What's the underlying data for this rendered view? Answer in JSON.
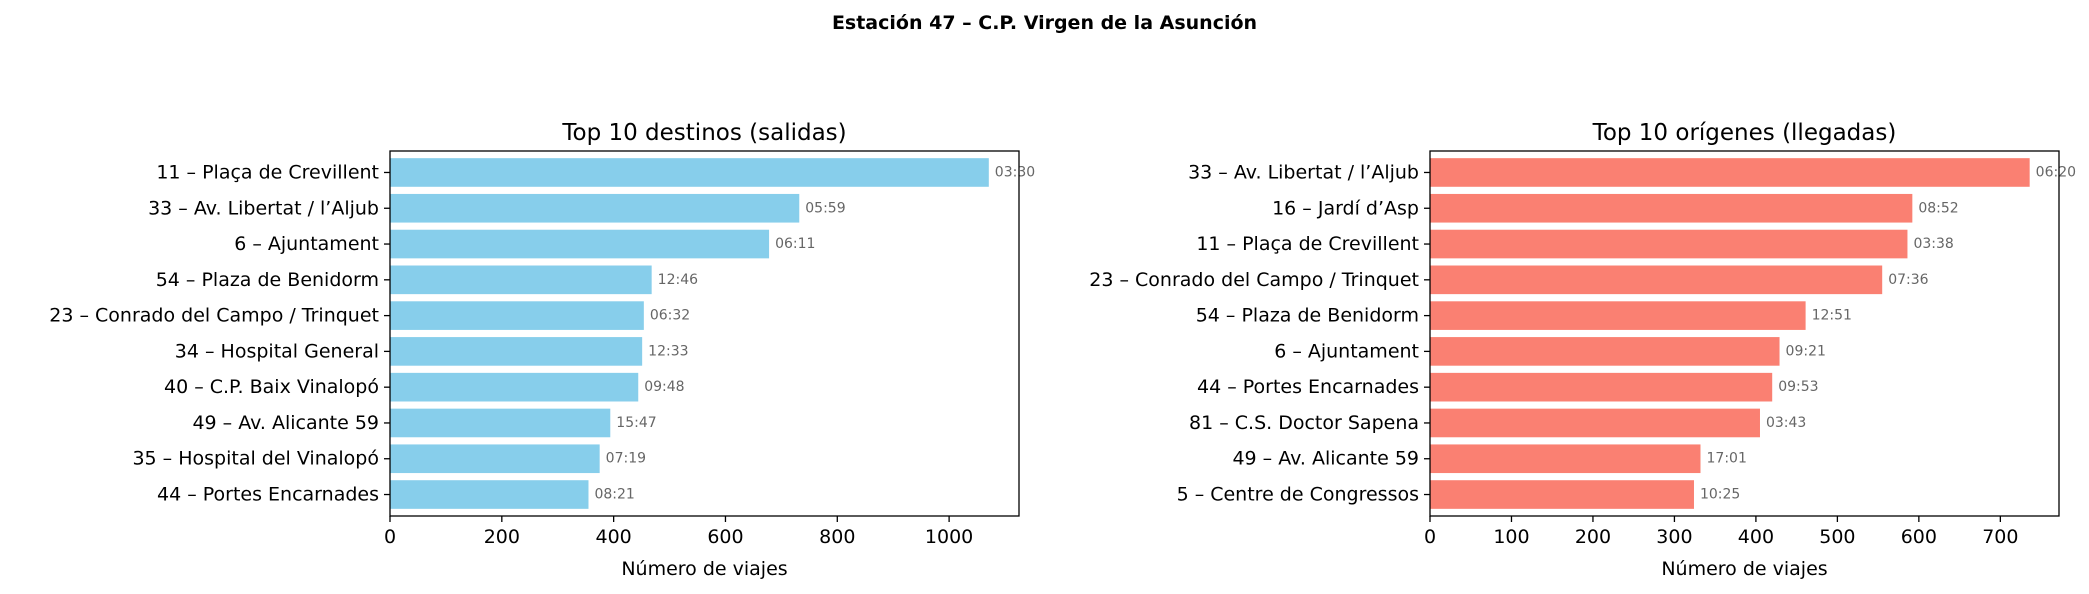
{
  "figure_title": "Estación 47 – C.P. Virgen de la Asunción",
  "chart_data": [
    {
      "type": "bar",
      "orientation": "horizontal",
      "title": "Top 10 destinos (salidas)",
      "xlabel": "Número de viajes",
      "ylabel": "",
      "xlim": [
        0,
        1125
      ],
      "xticks": [
        0,
        200,
        400,
        600,
        800,
        1000
      ],
      "grid": false,
      "bar_color": "#87ceeb",
      "categories": [
        "11 – Plaça de Crevillent",
        "33 – Av. Libertat / l’Aljub",
        "6 – Ajuntament",
        "54 – Plaza de Benidorm",
        "23 – Conrado del Campo / Trinquet",
        "34 – Hospital General",
        "40 – C.P. Baix Vinalopó",
        "49 – Av. Alicante 59",
        "35 – Hospital del Vinalopó",
        "44 – Portes Encarnades"
      ],
      "values": [
        1071,
        732,
        678,
        468,
        454,
        451,
        444,
        394,
        375,
        355
      ],
      "bar_labels": [
        "03:30",
        "05:59",
        "06:11",
        "12:46",
        "06:32",
        "12:33",
        "09:48",
        "15:47",
        "07:19",
        "08:21"
      ]
    },
    {
      "type": "bar",
      "orientation": "horizontal",
      "title": "Top 10 orígenes (llegadas)",
      "xlabel": "Número de viajes",
      "ylabel": "",
      "xlim": [
        0,
        772
      ],
      "xticks": [
        0,
        100,
        200,
        300,
        400,
        500,
        600,
        700
      ],
      "grid": false,
      "bar_color": "#fa8072",
      "categories": [
        "33 – Av. Libertat / l’Aljub",
        "16 – Jardí d’Asp",
        "11 – Plaça de Crevillent",
        "23 – Conrado del Campo / Trinquet",
        "54 – Plaza de Benidorm",
        "6 – Ajuntament",
        "44 – Portes Encarnades",
        "81 – C.S. Doctor Sapena",
        "49 – Av. Alicante 59",
        "5 – Centre de Congressos"
      ],
      "values": [
        736,
        592,
        586,
        555,
        461,
        429,
        420,
        405,
        332,
        324
      ],
      "bar_labels": [
        "06:20",
        "08:52",
        "03:38",
        "07:36",
        "12:51",
        "09:21",
        "09:53",
        "03:43",
        "17:01",
        "10:25"
      ]
    }
  ]
}
